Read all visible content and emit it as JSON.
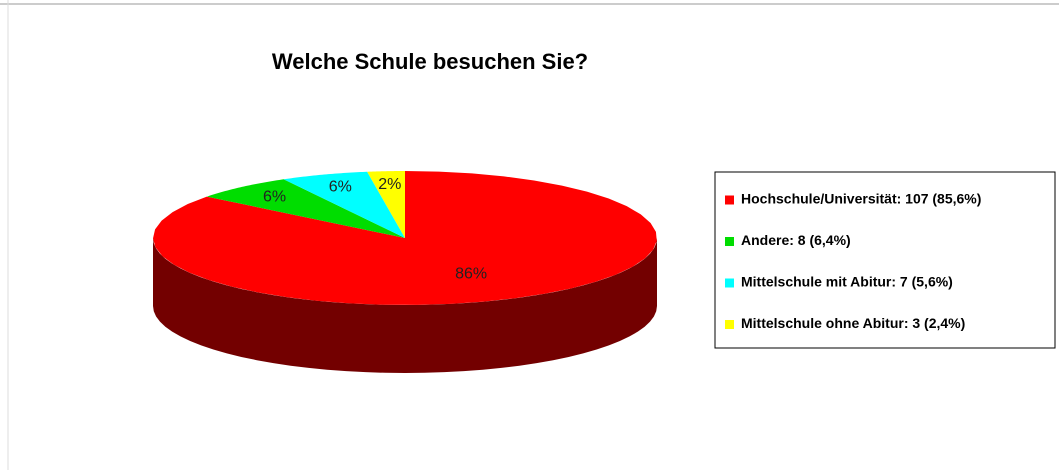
{
  "chart_data": {
    "type": "pie",
    "title": "Welche Schule besuchen Sie?",
    "categories": [
      "Hochschule/Universität: 107 (85,6%)",
      "Andere: 8 (6,4%)",
      "Mittelschule mit Abitur: 7 (5,6%)",
      "Mittelschule ohne Abitur: 3 (2,4%)"
    ],
    "values": [
      85.6,
      6.4,
      5.6,
      2.4
    ],
    "value_labels": [
      "86%",
      "6%",
      "6%",
      "2%"
    ],
    "colors": [
      "#ff0000",
      "#00dd00",
      "#00ffff",
      "#ffff00"
    ],
    "legend": "right"
  }
}
